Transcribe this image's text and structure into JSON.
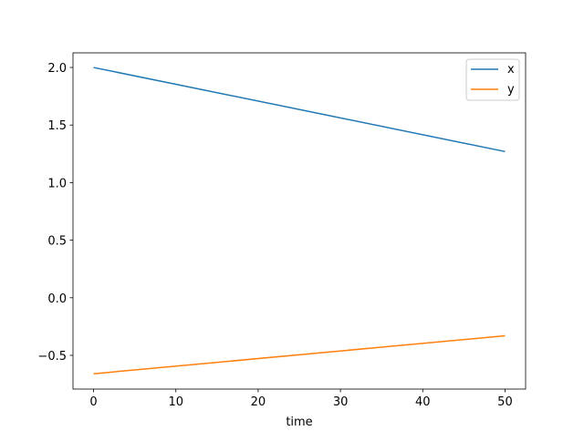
{
  "chart_data": {
    "type": "line",
    "xlabel": "time",
    "x": [
      0,
      50
    ],
    "series": [
      {
        "name": "x",
        "color": "#1f77b4",
        "values": [
          2.0,
          1.27
        ]
      },
      {
        "name": "y",
        "color": "#ff7f0e",
        "values": [
          -0.66,
          -0.33
        ]
      }
    ],
    "xlim": [
      -2.5,
      52.5
    ],
    "xticks": [
      0,
      10,
      20,
      30,
      40,
      50
    ],
    "ylim": [
      -0.793,
      2.127
    ],
    "yticks": [
      {
        "value": -0.5,
        "label": "−0.5"
      },
      {
        "value": 0,
        "label": "0.0"
      },
      0.5,
      {
        "value": 1,
        "label": "1.0"
      },
      1.5,
      {
        "value": 2,
        "label": "2.0"
      }
    ],
    "legend": "upper right"
  }
}
